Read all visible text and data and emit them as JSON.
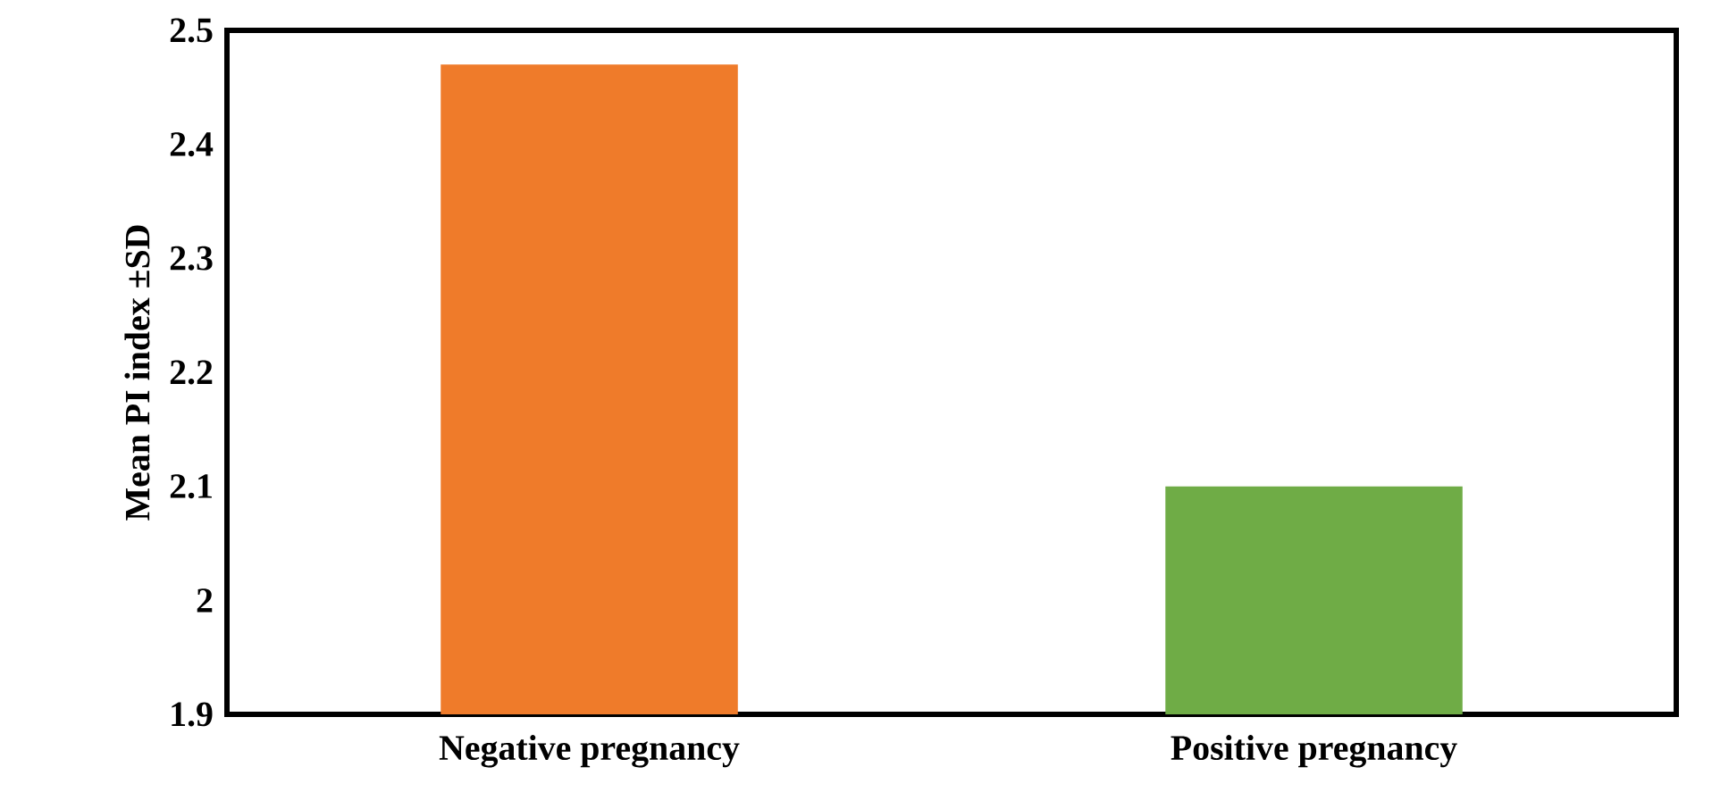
{
  "chart_data": {
    "type": "bar",
    "ylabel": "Mean PI index ±SD",
    "categories": [
      "Negative pregnancy",
      "Positive pregnancy"
    ],
    "values": [
      2.47,
      2.1
    ],
    "colors": [
      "#ef7b2a",
      "#6fac46"
    ],
    "ylim": [
      1.9,
      2.5
    ],
    "yticks": [
      1.9,
      2,
      2.1,
      2.2,
      2.3,
      2.4,
      2.5
    ],
    "grid": false
  }
}
